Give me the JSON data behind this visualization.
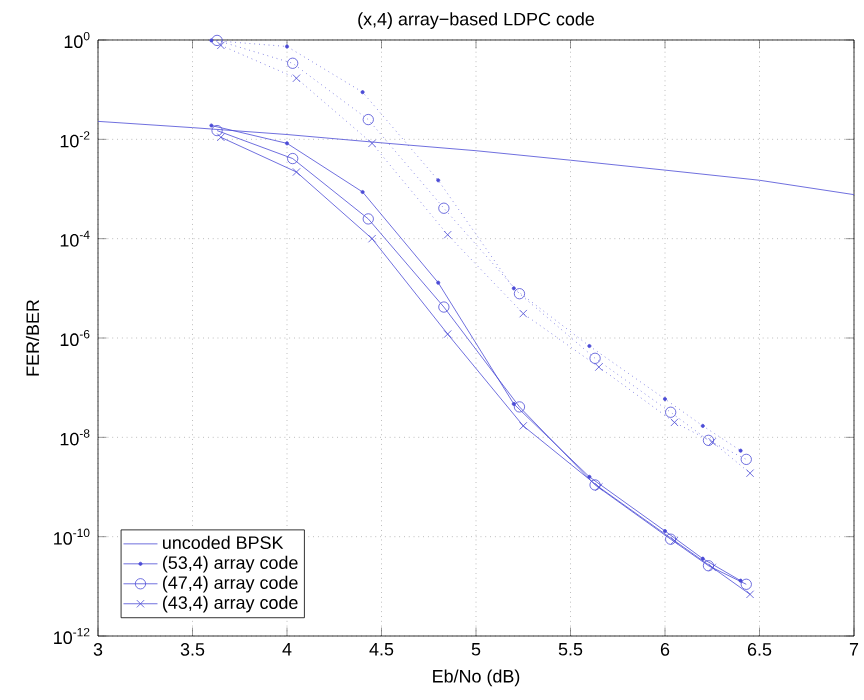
{
  "chart_data": {
    "type": "line",
    "title": "(x,4) array−based LDPC code",
    "xlabel": "Eb/No (dB)",
    "ylabel": "FER/BER",
    "log": true,
    "grid": true,
    "legend": "bottom left",
    "xlim": [
      3,
      7
    ],
    "xticks": [
      3,
      3.5,
      4,
      4.5,
      5,
      5.5,
      6,
      6.5,
      7
    ],
    "ylim": [
      1e-12,
      1
    ],
    "yticks": [
      {
        "value": 1e-12,
        "label": "10$^{-12}$"
      },
      {
        "value": 1e-10,
        "label": "10$^{-10}$"
      },
      {
        "value": 1e-08,
        "label": "10$^{-8}$"
      },
      {
        "value": 1e-06,
        "label": "10$^{-6}$"
      },
      {
        "value": 0.0001,
        "label": "10$^{-4}$"
      },
      {
        "value": 0.01,
        "label": "10$^{-2}$"
      },
      {
        "value": 1,
        "label": "10$^{0}$"
      }
    ],
    "series": [
      {
        "name": "uncoded BPSK",
        "color": "#4b4bd6",
        "marker": "none",
        "line_style": "solid",
        "x": [
          3,
          3.5,
          4,
          4.5,
          5,
          5.5,
          6,
          6.5,
          7
        ],
        "values": [
          0.023,
          0.0172,
          0.0125,
          0.0085,
          0.0059,
          0.0038,
          0.0024,
          0.0015,
          0.00077
        ]
      },
      {
        "name": "(53,4) array code",
        "color": "#4b4bd6",
        "marker": "point",
        "line_style": "solid",
        "x": [
          3.6,
          4.0,
          4.4,
          4.8,
          5.2,
          5.6,
          6.0,
          6.2,
          6.4
        ],
        "values": [
          0.019,
          0.0083,
          0.00087,
          1.3e-05,
          4.7e-08,
          1.6e-09,
          1.3e-10,
          3.6e-11,
          1.3e-11
        ]
      },
      {
        "name": "(47,4) array code",
        "color": "#4b4bd6",
        "marker": "circle",
        "line_style": "solid",
        "x": [
          3.63,
          4.03,
          4.43,
          4.83,
          5.23,
          5.63,
          6.03,
          6.23,
          6.43
        ],
        "values": [
          0.015,
          0.0041,
          0.00025,
          4.2e-06,
          4.1e-08,
          1.1e-09,
          8.9e-11,
          2.6e-11,
          1.1e-11
        ]
      },
      {
        "name": "(43,4) array code",
        "color": "#4b4bd6",
        "marker": "cross",
        "line_style": "solid",
        "x": [
          3.65,
          4.05,
          4.45,
          4.85,
          5.25,
          5.65,
          6.05,
          6.25,
          6.45
        ],
        "values": [
          0.011,
          0.0022,
          0.0001,
          1.2e-06,
          1.7e-08,
          1e-09,
          8.3e-11,
          2.4e-11,
          6.9e-12
        ]
      },
      {
        "color": "#4b4bd6",
        "marker": "point",
        "line_style": "dotted",
        "x": [
          3.6,
          4.0,
          4.4,
          4.8,
          5.2,
          5.6,
          6.0,
          6.2,
          6.4
        ],
        "values": [
          0.98,
          0.74,
          0.089,
          0.0015,
          1e-05,
          6.9e-07,
          5.9e-08,
          1.7e-08,
          5.4e-09
        ]
      },
      {
        "color": "#4b4bd6",
        "marker": "circle",
        "line_style": "dotted",
        "x": [
          3.63,
          4.03,
          4.43,
          4.83,
          5.23,
          5.63,
          6.03,
          6.23,
          6.43
        ],
        "values": [
          0.98,
          0.34,
          0.025,
          0.00041,
          7.8e-06,
          3.9e-07,
          3.2e-08,
          8.7e-09,
          3.6e-09
        ]
      },
      {
        "color": "#4b4bd6",
        "marker": "cross",
        "line_style": "dotted",
        "x": [
          3.65,
          4.05,
          4.45,
          4.85,
          5.25,
          5.65,
          6.05,
          6.25,
          6.45
        ],
        "values": [
          0.78,
          0.17,
          0.0083,
          0.00012,
          3.1e-06,
          2.6e-07,
          2e-08,
          8.1e-09,
          1.9e-09
        ]
      }
    ]
  }
}
